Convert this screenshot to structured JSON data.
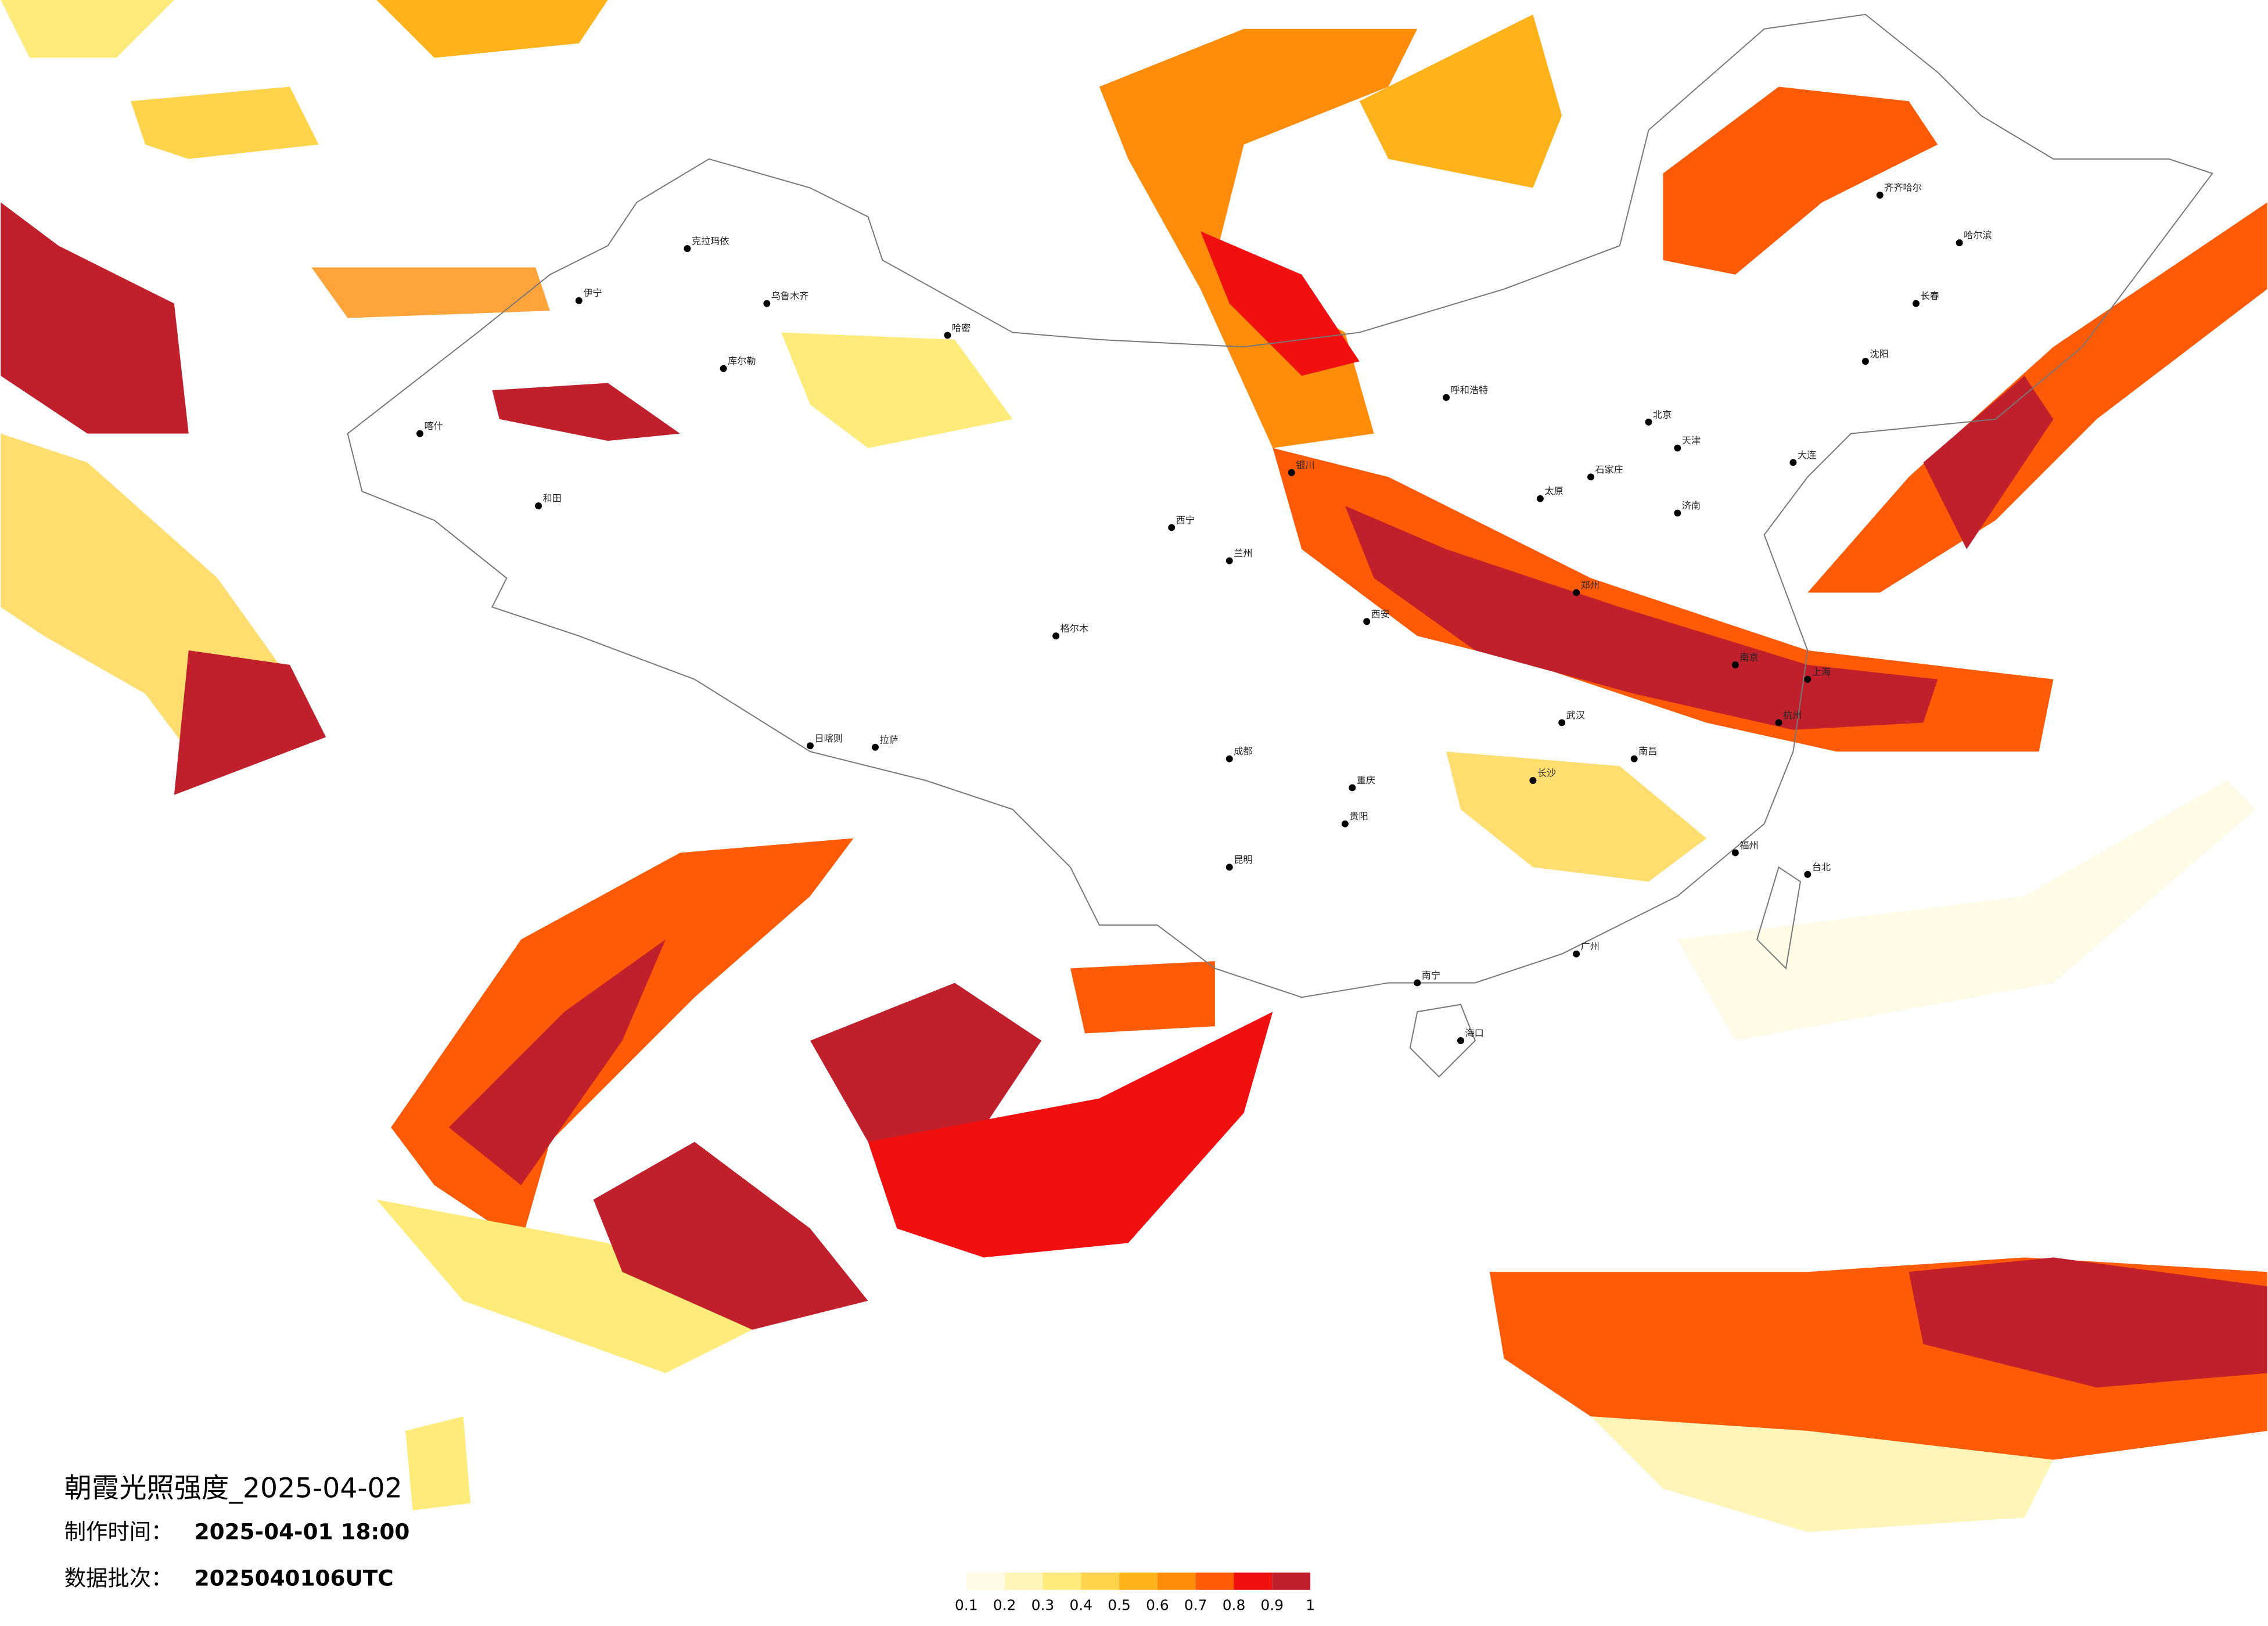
{
  "map": {
    "title": "朝霞光照强度_2025-04-02",
    "made_label": "制作时间：",
    "made_value": "2025-04-01 18:00",
    "batch_label": "数据批次：",
    "batch_value": "2025040106UTC",
    "legend": {
      "colors": [
        "#fffbe6",
        "#fff5b8",
        "#ffeb7a",
        "#ffd44a",
        "#ffb21a",
        "#ff8c0a",
        "#ff5a05",
        "#f01010",
        "#c0202c"
      ],
      "ticks": [
        0.1,
        0.2,
        0.3,
        0.4,
        0.5,
        0.6,
        0.7,
        0.8,
        0.9,
        1
      ]
    },
    "cities": [
      "克拉玛依",
      "伊宁",
      "乌鲁木齐",
      "哈密",
      "库尔勒",
      "喀什",
      "和田",
      "格尔木",
      "拉萨",
      "日喀则",
      "西宁",
      "兰州",
      "银川",
      "呼和浩特",
      "北京",
      "天津",
      "石家庄",
      "太原",
      "西安",
      "郑州",
      "济南",
      "成都",
      "重庆",
      "武汉",
      "南京",
      "上海",
      "杭州",
      "长沙",
      "南昌",
      "福州",
      "广州",
      "南宁",
      "昆明",
      "贵阳",
      "海口",
      "台北",
      "哈尔滨",
      "长春",
      "沈阳",
      "大连",
      "齐齐哈尔"
    ]
  }
}
